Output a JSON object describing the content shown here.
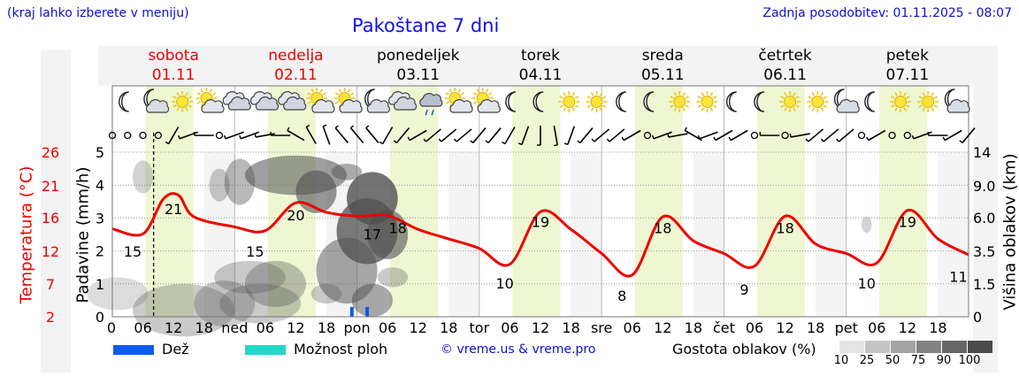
{
  "header": {
    "left_note": "(kraj lahko izberete v meniju)",
    "title": "Pakoštane 7 dni",
    "updated": "Zadnja posodobitev: 01.11.2025 - 08:07"
  },
  "days": [
    {
      "name": "sobota",
      "date": "01.11",
      "weekend": true
    },
    {
      "name": "nedelja",
      "date": "02.11",
      "weekend": true
    },
    {
      "name": "ponedeljek",
      "date": "03.11",
      "weekend": false
    },
    {
      "name": "torek",
      "date": "04.11",
      "weekend": false
    },
    {
      "name": "sreda",
      "date": "05.11",
      "weekend": false
    },
    {
      "name": "četrtek",
      "date": "06.11",
      "weekend": false
    },
    {
      "name": "petek",
      "date": "07.11",
      "weekend": false
    }
  ],
  "weather_icons": [
    "moon",
    "moon-cloud",
    "sun",
    "sun-cloud",
    "cloud",
    "cloud",
    "cloud",
    "sun-cloud",
    "sun-cloud",
    "moon-cloud",
    "cloud",
    "rain-cloud",
    "sun-cloud",
    "sun-cloud",
    "moon",
    "moon",
    "sun",
    "sun",
    "moon",
    "moon",
    "sun",
    "sun",
    "moon",
    "moon",
    "sun",
    "sun",
    "moon-cloud",
    "moon",
    "sun",
    "sun",
    "moon-cloud"
  ],
  "legend": {
    "rain": "Dež",
    "storm": "Možnost ploh",
    "copyright": "© vreme.us & vreme.pro",
    "density_title": "Gostota oblakov (%)",
    "density_levels": [
      "10",
      "25",
      "50",
      "75",
      "90",
      "100"
    ],
    "colors": {
      "rain": "#0a5cf0",
      "storm": "#20d8c8"
    }
  },
  "chart_data": {
    "type": "line",
    "title": "Pakoštane 7 dni",
    "x_unit": "hours from 2025-11-01 00:00",
    "x_range": [
      0,
      168
    ],
    "current_time_hour": 8.1,
    "x_tick_labels": [
      "06",
      "12",
      "18",
      "ned",
      "06",
      "12",
      "18",
      "pon",
      "06",
      "12",
      "18",
      "tor",
      "06",
      "12",
      "18",
      "sre",
      "06",
      "12",
      "18",
      "čet",
      "06",
      "12",
      "18",
      "pet",
      "06",
      "12",
      "18"
    ],
    "axes": {
      "temperature": {
        "label": "Temperatura (°C)",
        "ticks": [
          "26",
          "21",
          "16",
          "12",
          "7",
          "2"
        ],
        "range": [
          2,
          28
        ]
      },
      "precipitation": {
        "label": "Padavine (mm/h)",
        "ticks": [
          "5",
          "4",
          "3",
          "2",
          "1",
          "0"
        ],
        "range": [
          0,
          5
        ]
      },
      "cloud_height": {
        "label": "Višina oblakov (km)",
        "ticks": [
          "14",
          "9.0",
          "6.0",
          "3.5",
          "1.5",
          "0"
        ],
        "range": [
          0,
          14
        ]
      }
    },
    "series": [
      {
        "name": "Temperatura",
        "unit": "°C",
        "x": [
          0,
          6,
          10,
          13,
          16,
          24,
          30,
          36,
          42,
          48,
          54,
          60,
          66,
          72,
          78,
          84,
          90,
          96,
          102,
          108,
          114,
          120,
          126,
          132,
          138,
          144,
          150,
          156,
          162,
          168
        ],
        "values": [
          15.9,
          15.1,
          20.6,
          21.2,
          17.8,
          16.2,
          15.6,
          20.0,
          18.5,
          17.9,
          18.0,
          15.8,
          14.3,
          12.8,
          10.3,
          18.6,
          15.8,
          12.0,
          8.6,
          17.8,
          14.0,
          12.0,
          10.0,
          17.9,
          13.5,
          12.0,
          10.5,
          18.8,
          14.3,
          11.8
        ]
      },
      {
        "name": "Dež",
        "unit": "mm/h",
        "x": [
          47,
          50
        ],
        "values": [
          0.3,
          0.3
        ]
      }
    ],
    "annotations": [
      {
        "x": 4,
        "y": 15,
        "text": "15"
      },
      {
        "x": 12,
        "y": 21,
        "text": "21"
      },
      {
        "x": 28,
        "y": 15,
        "text": "15"
      },
      {
        "x": 36,
        "y": 20,
        "text": "20"
      },
      {
        "x": 51,
        "y": 17,
        "text": "17"
      },
      {
        "x": 56,
        "y": 18,
        "text": "18"
      },
      {
        "x": 77,
        "y": 10,
        "text": "10"
      },
      {
        "x": 84,
        "y": 19,
        "text": "19"
      },
      {
        "x": 100,
        "y": 8,
        "text": "8"
      },
      {
        "x": 108,
        "y": 18,
        "text": "18"
      },
      {
        "x": 124,
        "y": 9,
        "text": "9"
      },
      {
        "x": 132,
        "y": 18,
        "text": "18"
      },
      {
        "x": 148,
        "y": 10,
        "text": "10"
      },
      {
        "x": 156,
        "y": 19,
        "text": "19"
      },
      {
        "x": 166,
        "y": 11,
        "text": "11"
      }
    ],
    "wind": {
      "x": [
        0,
        3,
        6,
        9,
        12,
        15,
        18,
        21,
        24,
        27,
        30,
        33,
        36,
        39,
        42,
        45,
        48,
        51,
        54,
        57,
        60,
        63,
        66,
        69,
        72,
        75,
        78,
        81,
        84,
        87,
        90,
        93,
        96,
        99,
        102,
        105,
        108,
        111,
        114,
        117,
        120,
        123,
        126,
        129,
        132,
        135,
        138,
        141,
        144,
        147,
        150,
        153,
        156,
        159,
        162,
        165,
        168
      ],
      "dir_deg": [
        0,
        0,
        0,
        0,
        210,
        250,
        270,
        0,
        250,
        250,
        260,
        270,
        300,
        330,
        340,
        320,
        320,
        320,
        210,
        220,
        240,
        230,
        230,
        230,
        220,
        220,
        210,
        200,
        180,
        170,
        200,
        220,
        230,
        230,
        240,
        0,
        250,
        260,
        300,
        250,
        240,
        240,
        0,
        270,
        0,
        260,
        230,
        230,
        230,
        0,
        240,
        0,
        0,
        250,
        270,
        240,
        220
      ],
      "calm": [
        true,
        true,
        true,
        true,
        false,
        false,
        false,
        true,
        false,
        false,
        false,
        false,
        false,
        false,
        false,
        false,
        false,
        false,
        false,
        false,
        false,
        false,
        false,
        false,
        false,
        false,
        false,
        false,
        false,
        false,
        false,
        false,
        false,
        false,
        false,
        true,
        false,
        false,
        false,
        false,
        false,
        false,
        true,
        false,
        true,
        false,
        false,
        false,
        false,
        true,
        false,
        true,
        true,
        false,
        false,
        false,
        false
      ]
    }
  }
}
